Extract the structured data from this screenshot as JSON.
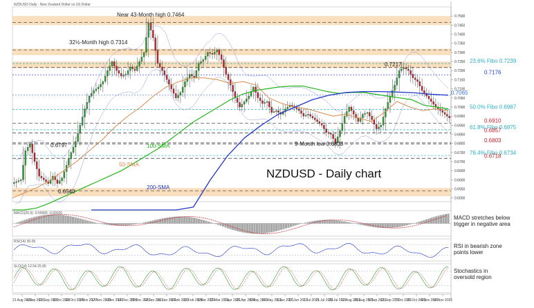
{
  "chart_data": {
    "type": "candlestick",
    "title": "NZDUSD - Daily chart",
    "header_text": "NZDUSD Daily - New Zealand Dollar vs US Dollar",
    "ylim": [
      0.648,
      0.755
    ],
    "x_tick_labels": [
      "21 Aug 2020",
      "4 Sep 2020",
      "21 Sep 2020",
      "5 Oct 2020",
      "19 Oct 2020",
      "3 Nov 2020",
      "17 Nov 2020",
      "1 Dec 2020",
      "15 Dec 2020",
      "29 Dec 2020",
      "12 Jan 2021",
      "26 Jan 2021",
      "9 Feb 2021",
      "23 Feb 2021",
      "9 Mar 2021",
      "23 Mar 2021",
      "7 Apr 2021",
      "21 Apr 2021",
      "5 May 2021",
      "19 May 2021",
      "3 Jun 2021",
      "17 Jun 2021",
      "1 Jul 2021",
      "15 Jul 2021",
      "29 Jul 2021",
      "12 Aug 2021",
      "26 Aug 2021",
      "9 Sep 2021",
      "23 Sep 2021",
      "7 Oct 2021",
      "21 Oct 2021",
      "4 Nov 2021",
      "18 Nov 2021"
    ],
    "price_series": [
      0.659,
      0.66,
      0.676,
      0.6797,
      0.67,
      0.662,
      0.66,
      0.658,
      0.662,
      0.658,
      0.661,
      0.668,
      0.675,
      0.681,
      0.69,
      0.699,
      0.706,
      0.709,
      0.711,
      0.714,
      0.72,
      0.725,
      0.72,
      0.717,
      0.718,
      0.722,
      0.72,
      0.725,
      0.73,
      0.7464,
      0.738,
      0.724,
      0.72,
      0.715,
      0.71,
      0.705,
      0.708,
      0.714,
      0.718,
      0.716,
      0.724,
      0.726,
      0.73,
      0.729,
      0.7314,
      0.726,
      0.718,
      0.712,
      0.705,
      0.7,
      0.703,
      0.706,
      0.711,
      0.705,
      0.702,
      0.703,
      0.697,
      0.698,
      0.696,
      0.699,
      0.701,
      0.7,
      0.698,
      0.695,
      0.696,
      0.694,
      0.692,
      0.69,
      0.686,
      0.685,
      0.6803,
      0.687,
      0.695,
      0.7,
      0.696,
      0.692,
      0.696,
      0.697,
      0.693,
      0.688,
      0.69,
      0.699,
      0.706,
      0.712,
      0.72,
      0.7217,
      0.72,
      0.716,
      0.714,
      0.709,
      0.706,
      0.703,
      0.7,
      0.698,
      0.696,
      0.694
    ],
    "sma_100": [
      0.64,
      0.642,
      0.6445,
      0.647,
      0.65,
      0.653,
      0.656,
      0.659,
      0.662,
      0.665,
      0.669,
      0.673,
      0.677,
      0.682,
      0.687,
      0.692,
      0.696,
      0.7,
      0.704,
      0.707,
      0.709,
      0.71,
      0.711,
      0.7115,
      0.7115,
      0.71,
      0.7085,
      0.7075,
      0.708,
      0.708,
      0.707,
      0.706,
      0.705,
      0.704,
      0.701,
      0.7,
      0.699
    ],
    "sma_50": [
      0.65,
      0.653,
      0.656,
      0.66,
      0.665,
      0.67,
      0.676,
      0.682,
      0.689,
      0.695,
      0.7,
      0.706,
      0.711,
      0.714,
      0.716,
      0.716,
      0.715,
      0.713,
      0.714,
      0.712,
      0.705,
      0.702,
      0.7,
      0.699,
      0.697,
      0.695,
      0.696,
      0.694,
      0.692,
      0.697,
      0.703,
      0.7,
      0.698,
      0.699,
      0.698
    ],
    "sma_200": [
      0.56,
      0.57,
      0.585,
      0.6,
      0.615,
      0.63,
      0.645,
      0.66,
      0.673,
      0.683,
      0.69,
      0.696,
      0.7,
      0.704,
      0.7065,
      0.708,
      0.7085,
      0.7085,
      0.7082,
      0.7078,
      0.707,
      0.7065
    ],
    "horizontal_levels": [
      {
        "label": "0.7464",
        "value": 0.7464
      },
      {
        "label": "0.7314",
        "value": 0.7314
      },
      {
        "label": "23.6% Fibo 0.7239",
        "value": 0.7239
      },
      {
        "label": "0.7217",
        "value": 0.7217
      },
      {
        "label": "0.7176",
        "value": 0.7176
      },
      {
        "label": "0.7065",
        "value": 0.7065
      },
      {
        "label": "50.0% Fibo 0.6987",
        "value": 0.6987
      },
      {
        "label": "0.6910",
        "value": 0.691
      },
      {
        "label": "61.8% Fibo 0.6875",
        "value": 0.6875
      },
      {
        "label": "0.6857",
        "value": 0.6857
      },
      {
        "label": "0.6803",
        "value": 0.6803
      },
      {
        "label": "0.6797",
        "value": 0.6797
      },
      {
        "label": "76.4% Fibo 0.6734",
        "value": 0.6734
      },
      {
        "label": "0.6718",
        "value": 0.6718
      },
      {
        "label": "0.6540",
        "value": 0.654
      }
    ],
    "annotations": [
      {
        "text": "Near 43-Month high 0.7464"
      },
      {
        "text": "32½-Month high 0.7314"
      },
      {
        "text": "0.7217"
      },
      {
        "text": "0.6797"
      },
      {
        "text": "9-Month low 0.6803"
      },
      {
        "text": "0.6540"
      },
      {
        "text": "100-SMA"
      },
      {
        "text": "50-SMA"
      },
      {
        "text": "200-SMA"
      },
      {
        "text": "NZDUSD - Daily chart"
      }
    ],
    "right_labels": [
      {
        "text": "23.6% Fibo 0.7239",
        "color": "#2ab0c4"
      },
      {
        "text": "0.7176",
        "color": "#1f3fcf"
      },
      {
        "text": "0.7065",
        "color": "#3a6fd8"
      },
      {
        "text": "50.0% Fibo 0.6987",
        "color": "#2ab0c4"
      },
      {
        "text": "0.6910",
        "color": "#c8202a"
      },
      {
        "text": "61.8% Fibo 0.6875",
        "color": "#2ab0c4"
      },
      {
        "text": "0.6857",
        "color": "#c8202a"
      },
      {
        "text": "0.6803",
        "color": "#c8202a"
      },
      {
        "text": "76.4% Fibo 0.6734",
        "color": "#2ab0c4"
      },
      {
        "text": "0.6718",
        "color": "#c8202a"
      }
    ],
    "indicators": [
      {
        "name": "MACD",
        "header": "MACD(26,9) -0.00005 -0.00025",
        "comment": [
          "MACD stretches below",
          "trigger in negative area"
        ]
      },
      {
        "name": "RSI",
        "header": "RSI(14) 36.06",
        "comment": [
          "RSI in bearish zone",
          "points lower"
        ]
      },
      {
        "name": "Stochastics",
        "header": "SLO(14) 12.54 25.95",
        "comment": [
          "Stochastics in",
          "oversold region"
        ]
      }
    ],
    "colors": {
      "sma100": "#22b51b",
      "sma50": "#d98a4c",
      "sma200": "#1f36c7",
      "bull": "#2ca02c",
      "bear": "#c8202a",
      "zone": "#f8d9b2",
      "fibo": "#2ab0c4"
    }
  }
}
